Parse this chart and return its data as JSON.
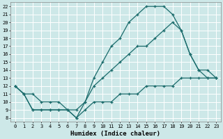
{
  "xlabel": "Humidex (Indice chaleur)",
  "xlim": [
    -0.5,
    23.5
  ],
  "ylim": [
    7.5,
    22.5
  ],
  "xticks": [
    0,
    1,
    2,
    3,
    4,
    5,
    6,
    7,
    8,
    9,
    10,
    11,
    12,
    13,
    14,
    15,
    16,
    17,
    18,
    19,
    20,
    21,
    22,
    23
  ],
  "yticks": [
    8,
    9,
    10,
    11,
    12,
    13,
    14,
    15,
    16,
    17,
    18,
    19,
    20,
    21,
    22
  ],
  "bg_color": "#cde8e8",
  "line_color": "#1a6b6b",
  "grid_color": "#aacccc",
  "grid_major_color": "#ffffff",
  "lines": [
    {
      "x": [
        0,
        1,
        2,
        3,
        4,
        5,
        6,
        7,
        8,
        9,
        10,
        11,
        12,
        13,
        14,
        15,
        16,
        17,
        18,
        19,
        20,
        21,
        22,
        23
      ],
      "y": [
        12,
        11,
        11,
        10,
        10,
        10,
        9,
        8,
        10,
        13,
        15,
        17,
        18,
        20,
        21,
        22,
        22,
        22,
        21,
        19,
        16,
        14,
        13,
        13
      ]
    },
    {
      "x": [
        0,
        1,
        2,
        3,
        4,
        5,
        6,
        7,
        8,
        9,
        10,
        11,
        12,
        13,
        14,
        15,
        16,
        17,
        18,
        19,
        20,
        21,
        22,
        23
      ],
      "y": [
        12,
        11,
        9,
        9,
        9,
        9,
        9,
        9,
        10,
        12,
        13,
        14,
        15,
        16,
        17,
        17,
        18,
        19,
        20,
        19,
        16,
        14,
        14,
        13
      ]
    },
    {
      "x": [
        0,
        1,
        2,
        3,
        4,
        5,
        6,
        7,
        8,
        9,
        10,
        11,
        12,
        13,
        14,
        15,
        16,
        17,
        18,
        19,
        20,
        21,
        22,
        23
      ],
      "y": [
        12,
        11,
        9,
        9,
        9,
        9,
        9,
        8,
        9,
        10,
        10,
        10,
        11,
        11,
        11,
        12,
        12,
        12,
        12,
        13,
        13,
        13,
        13,
        13
      ]
    }
  ]
}
